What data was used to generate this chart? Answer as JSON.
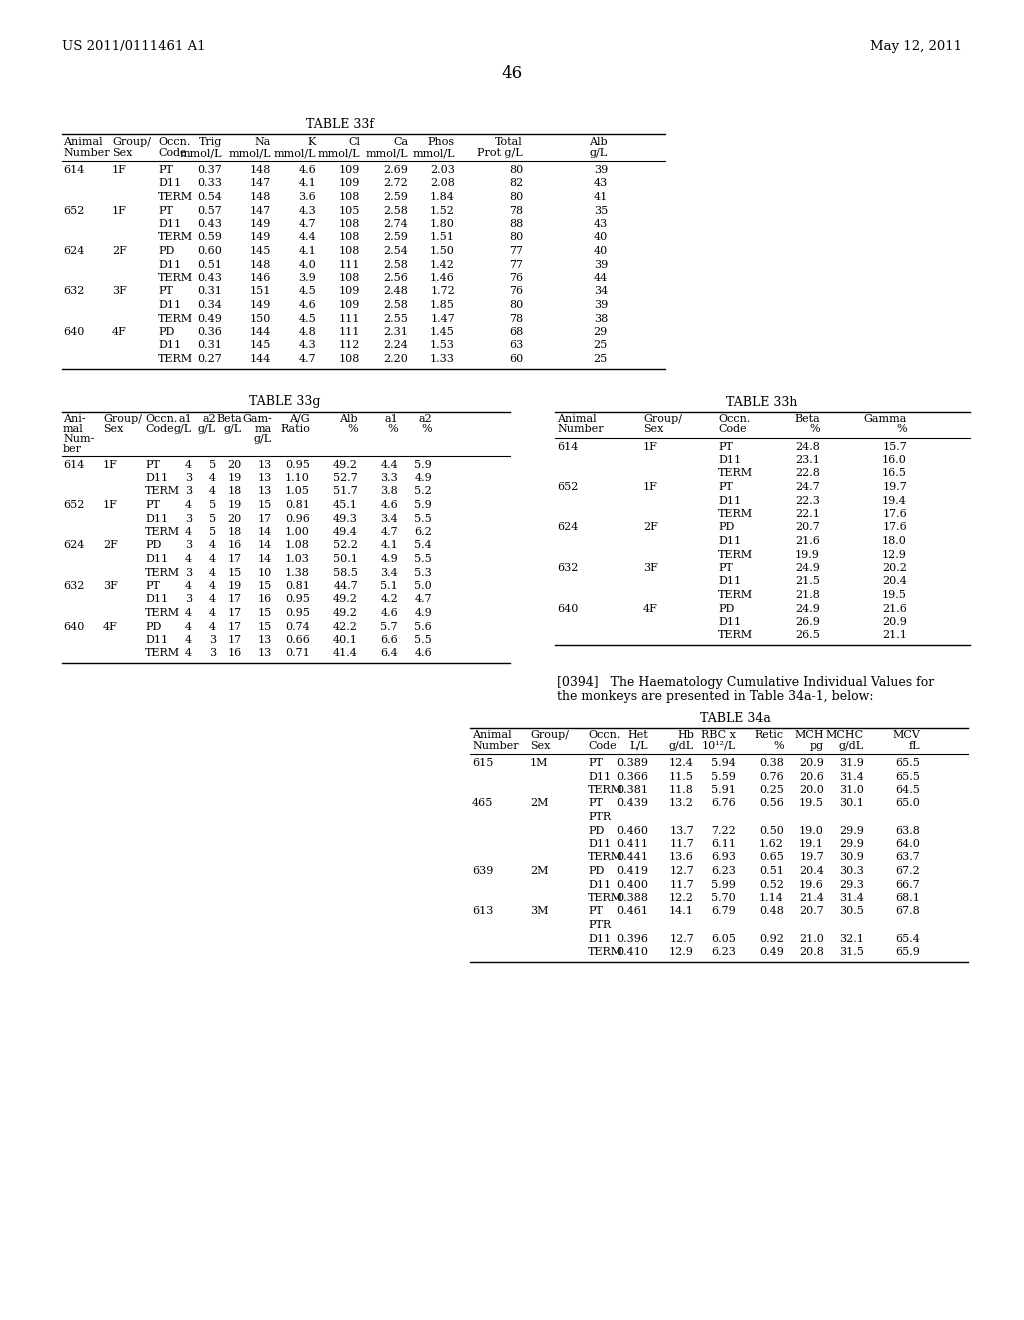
{
  "header_left": "US 2011/0111461 A1",
  "header_right": "May 12, 2011",
  "page_number": "46",
  "table33f": {
    "title": "TABLE 33f",
    "rows": [
      [
        "614",
        "1F",
        "PT",
        "0.37",
        "148",
        "4.6",
        "109",
        "2.69",
        "2.03",
        "80",
        "39"
      ],
      [
        "",
        "",
        "D11",
        "0.33",
        "147",
        "4.1",
        "109",
        "2.72",
        "2.08",
        "82",
        "43"
      ],
      [
        "",
        "",
        "TERM",
        "0.54",
        "148",
        "3.6",
        "108",
        "2.59",
        "1.84",
        "80",
        "41"
      ],
      [
        "652",
        "1F",
        "PT",
        "0.57",
        "147",
        "4.3",
        "105",
        "2.58",
        "1.52",
        "78",
        "35"
      ],
      [
        "",
        "",
        "D11",
        "0.43",
        "149",
        "4.7",
        "108",
        "2.74",
        "1.80",
        "88",
        "43"
      ],
      [
        "",
        "",
        "TERM",
        "0.59",
        "149",
        "4.4",
        "108",
        "2.59",
        "1.51",
        "80",
        "40"
      ],
      [
        "624",
        "2F",
        "PD",
        "0.60",
        "145",
        "4.1",
        "108",
        "2.54",
        "1.50",
        "77",
        "40"
      ],
      [
        "",
        "",
        "D11",
        "0.51",
        "148",
        "4.0",
        "111",
        "2.58",
        "1.42",
        "77",
        "39"
      ],
      [
        "",
        "",
        "TERM",
        "0.43",
        "146",
        "3.9",
        "108",
        "2.56",
        "1.46",
        "76",
        "44"
      ],
      [
        "632",
        "3F",
        "PT",
        "0.31",
        "151",
        "4.5",
        "109",
        "2.48",
        "1.72",
        "76",
        "34"
      ],
      [
        "",
        "",
        "D11",
        "0.34",
        "149",
        "4.6",
        "109",
        "2.58",
        "1.85",
        "80",
        "39"
      ],
      [
        "",
        "",
        "TERM",
        "0.49",
        "150",
        "4.5",
        "111",
        "2.55",
        "1.47",
        "78",
        "38"
      ],
      [
        "640",
        "4F",
        "PD",
        "0.36",
        "144",
        "4.8",
        "111",
        "2.31",
        "1.45",
        "68",
        "29"
      ],
      [
        "",
        "",
        "D11",
        "0.31",
        "145",
        "4.3",
        "112",
        "2.24",
        "1.53",
        "63",
        "25"
      ],
      [
        "",
        "",
        "TERM",
        "0.27",
        "144",
        "4.7",
        "108",
        "2.20",
        "1.33",
        "60",
        "25"
      ]
    ]
  },
  "table33g": {
    "title": "TABLE 33g",
    "rows": [
      [
        "614",
        "1F",
        "PT",
        "4",
        "5",
        "20",
        "13",
        "0.95",
        "49.2",
        "4.4",
        "5.9"
      ],
      [
        "",
        "",
        "D11",
        "3",
        "4",
        "19",
        "13",
        "1.10",
        "52.7",
        "3.3",
        "4.9"
      ],
      [
        "",
        "",
        "TERM",
        "3",
        "4",
        "18",
        "13",
        "1.05",
        "51.7",
        "3.8",
        "5.2"
      ],
      [
        "652",
        "1F",
        "PT",
        "4",
        "5",
        "19",
        "15",
        "0.81",
        "45.1",
        "4.6",
        "5.9"
      ],
      [
        "",
        "",
        "D11",
        "3",
        "5",
        "20",
        "17",
        "0.96",
        "49.3",
        "3.4",
        "5.5"
      ],
      [
        "",
        "",
        "TERM",
        "4",
        "5",
        "18",
        "14",
        "1.00",
        "49.4",
        "4.7",
        "6.2"
      ],
      [
        "624",
        "2F",
        "PD",
        "3",
        "4",
        "16",
        "14",
        "1.08",
        "52.2",
        "4.1",
        "5.4"
      ],
      [
        "",
        "",
        "D11",
        "4",
        "4",
        "17",
        "14",
        "1.03",
        "50.1",
        "4.9",
        "5.5"
      ],
      [
        "",
        "",
        "TERM",
        "3",
        "4",
        "15",
        "10",
        "1.38",
        "58.5",
        "3.4",
        "5.3"
      ],
      [
        "632",
        "3F",
        "PT",
        "4",
        "4",
        "19",
        "15",
        "0.81",
        "44.7",
        "5.1",
        "5.0"
      ],
      [
        "",
        "",
        "D11",
        "3",
        "4",
        "17",
        "16",
        "0.95",
        "49.2",
        "4.2",
        "4.7"
      ],
      [
        "",
        "",
        "TERM",
        "4",
        "4",
        "17",
        "15",
        "0.95",
        "49.2",
        "4.6",
        "4.9"
      ],
      [
        "640",
        "4F",
        "PD",
        "4",
        "4",
        "17",
        "15",
        "0.74",
        "42.2",
        "5.7",
        "5.6"
      ],
      [
        "",
        "",
        "D11",
        "4",
        "3",
        "17",
        "13",
        "0.66",
        "40.1",
        "6.6",
        "5.5"
      ],
      [
        "",
        "",
        "TERM",
        "4",
        "3",
        "16",
        "13",
        "0.71",
        "41.4",
        "6.4",
        "4.6"
      ]
    ]
  },
  "table33h": {
    "title": "TABLE 33h",
    "rows": [
      [
        "614",
        "1F",
        "PT",
        "24.8",
        "15.7"
      ],
      [
        "",
        "",
        "D11",
        "23.1",
        "16.0"
      ],
      [
        "",
        "",
        "TERM",
        "22.8",
        "16.5"
      ],
      [
        "652",
        "1F",
        "PT",
        "24.7",
        "19.7"
      ],
      [
        "",
        "",
        "D11",
        "22.3",
        "19.4"
      ],
      [
        "",
        "",
        "TERM",
        "22.1",
        "17.6"
      ],
      [
        "624",
        "2F",
        "PD",
        "20.7",
        "17.6"
      ],
      [
        "",
        "",
        "D11",
        "21.6",
        "18.0"
      ],
      [
        "",
        "",
        "TERM",
        "19.9",
        "12.9"
      ],
      [
        "632",
        "3F",
        "PT",
        "24.9",
        "20.2"
      ],
      [
        "",
        "",
        "D11",
        "21.5",
        "20.4"
      ],
      [
        "",
        "",
        "TERM",
        "21.8",
        "19.5"
      ],
      [
        "640",
        "4F",
        "PD",
        "24.9",
        "21.6"
      ],
      [
        "",
        "",
        "D11",
        "26.9",
        "20.9"
      ],
      [
        "",
        "",
        "TERM",
        "26.5",
        "21.1"
      ]
    ]
  },
  "para_line1": "[0394]   The Haematology Cumulative Individual Values for",
  "para_line2": "the monkeys are presented in Table 34a-1, below:",
  "table34a": {
    "title": "TABLE 34a",
    "rows": [
      [
        "615",
        "1M",
        "PT",
        "0.389",
        "12.4",
        "5.94",
        "0.38",
        "20.9",
        "31.9",
        "65.5"
      ],
      [
        "",
        "",
        "D11",
        "0.366",
        "11.5",
        "5.59",
        "0.76",
        "20.6",
        "31.4",
        "65.5"
      ],
      [
        "",
        "",
        "TERM",
        "0.381",
        "11.8",
        "5.91",
        "0.25",
        "20.0",
        "31.0",
        "64.5"
      ],
      [
        "465",
        "2M",
        "PT",
        "0.439",
        "13.2",
        "6.76",
        "0.56",
        "19.5",
        "30.1",
        "65.0"
      ],
      [
        "",
        "",
        "PTR",
        "",
        "",
        "",
        "",
        "",
        "",
        ""
      ],
      [
        "",
        "",
        "PD",
        "0.460",
        "13.7",
        "7.22",
        "0.50",
        "19.0",
        "29.9",
        "63.8"
      ],
      [
        "",
        "",
        "D11",
        "0.411",
        "11.7",
        "6.11",
        "1.62",
        "19.1",
        "29.9",
        "64.0"
      ],
      [
        "",
        "",
        "TERM",
        "0.441",
        "13.6",
        "6.93",
        "0.65",
        "19.7",
        "30.9",
        "63.7"
      ],
      [
        "639",
        "2M",
        "PD",
        "0.419",
        "12.7",
        "6.23",
        "0.51",
        "20.4",
        "30.3",
        "67.2"
      ],
      [
        "",
        "",
        "D11",
        "0.400",
        "11.7",
        "5.99",
        "0.52",
        "19.6",
        "29.3",
        "66.7"
      ],
      [
        "",
        "",
        "TERM",
        "0.388",
        "12.2",
        "5.70",
        "1.14",
        "21.4",
        "31.4",
        "68.1"
      ],
      [
        "613",
        "3M",
        "PT",
        "0.461",
        "14.1",
        "6.79",
        "0.48",
        "20.7",
        "30.5",
        "67.8"
      ],
      [
        "",
        "",
        "PTR",
        "",
        "",
        "",
        "",
        "",
        "",
        ""
      ],
      [
        "",
        "",
        "D11",
        "0.396",
        "12.7",
        "6.05",
        "0.92",
        "21.0",
        "32.1",
        "65.4"
      ],
      [
        "",
        "",
        "TERM",
        "0.410",
        "12.9",
        "6.23",
        "0.49",
        "20.8",
        "31.5",
        "65.9"
      ]
    ]
  }
}
